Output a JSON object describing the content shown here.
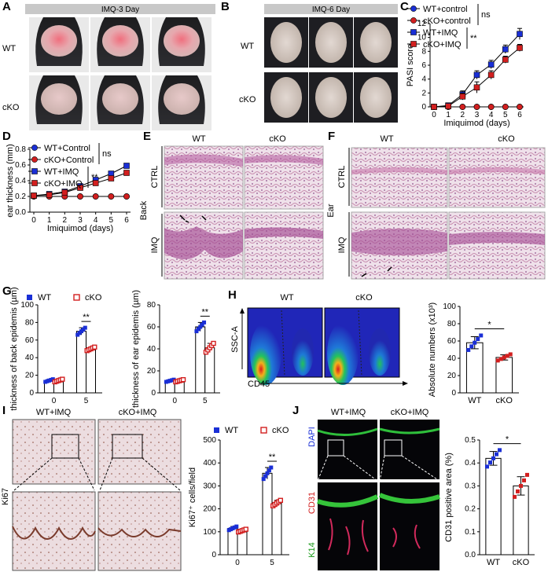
{
  "panels": {
    "A": {
      "letter": "A",
      "title": "IMQ-3 Day",
      "rows": [
        "WT",
        "cKO"
      ]
    },
    "B": {
      "letter": "B",
      "title": "IMQ-6 Day",
      "rows": [
        "WT",
        "cKO"
      ]
    },
    "E": {
      "letter": "E",
      "cols": [
        "WT",
        "cKO"
      ],
      "side": "Back",
      "rows": [
        "CTRL",
        "IMQ"
      ]
    },
    "F": {
      "letter": "F",
      "cols": [
        "WT",
        "cKO"
      ],
      "side": "Ear",
      "rows": [
        "CTRL",
        "IMQ"
      ]
    },
    "H": {
      "letter": "H",
      "cols": [
        "WT",
        "cKO"
      ],
      "yaxis": "SSC-A",
      "xaxis": "CD45"
    },
    "I": {
      "letter": "I",
      "cols": [
        "WT+IMQ",
        "cKO+IMQ"
      ],
      "side": "Ki67"
    },
    "J": {
      "letter": "J",
      "cols": [
        "WT+IMQ",
        "cKO+IMQ"
      ],
      "stains": [
        "DAPI",
        "CD31",
        "K14"
      ]
    }
  },
  "colors": {
    "blue": "#1a2fd6",
    "red": "#d21f1f"
  },
  "chart_data": [
    {
      "id": "C",
      "letter": "C",
      "type": "line",
      "xlabel": "Imiquimod (days)",
      "ylabel": "PASI score",
      "x": [
        0,
        1,
        2,
        3,
        4,
        5,
        6
      ],
      "ylim": [
        0,
        12
      ],
      "yticks": [
        0,
        2,
        4,
        6,
        8,
        10,
        12
      ],
      "series": [
        {
          "name": "WT+control",
          "values": [
            0,
            0,
            0,
            0,
            0,
            0,
            0
          ],
          "marker": "circle",
          "color": "blue"
        },
        {
          "name": "cKO+control",
          "values": [
            0,
            0,
            0,
            0,
            0,
            0,
            0
          ],
          "marker": "circle",
          "color": "red"
        },
        {
          "name": "WT+IMQ",
          "values": [
            0,
            0.2,
            1.8,
            4.6,
            6.1,
            8.3,
            10.5
          ],
          "err": [
            0,
            0.1,
            0.5,
            0.6,
            0.6,
            0.6,
            0.8
          ],
          "marker": "square",
          "color": "blue"
        },
        {
          "name": "cKO+IMQ",
          "values": [
            0,
            0.1,
            1.5,
            2.8,
            4.6,
            6.8,
            8.5
          ],
          "err": [
            0,
            0.1,
            0.5,
            0.8,
            0.6,
            0.5,
            0.5
          ],
          "marker": "square",
          "color": "red"
        }
      ],
      "annotations": [
        "ns",
        "**"
      ]
    },
    {
      "id": "D",
      "letter": "D",
      "type": "line",
      "xlabel": "Imiquimod (days)",
      "ylabel": "ear thickness (mm)",
      "x": [
        0,
        1,
        2,
        3,
        4,
        5,
        6
      ],
      "ylim": [
        0,
        0.8
      ],
      "yticks": [
        "0.0",
        "0.2",
        "0.4",
        "0.6",
        "0.8"
      ],
      "series": [
        {
          "name": "WT+Control",
          "values": [
            0.2,
            0.2,
            0.2,
            0.2,
            0.2,
            0.2,
            0.2
          ],
          "marker": "circle",
          "color": "blue"
        },
        {
          "name": "cKO+Control",
          "values": [
            0.2,
            0.2,
            0.2,
            0.2,
            0.2,
            0.2,
            0.2
          ],
          "marker": "circle",
          "color": "red"
        },
        {
          "name": "WT+IMQ",
          "values": [
            0.21,
            0.23,
            0.26,
            0.33,
            0.41,
            0.49,
            0.59
          ],
          "err": [
            0.01,
            0.01,
            0.01,
            0.02,
            0.02,
            0.02,
            0.03
          ],
          "marker": "square",
          "color": "blue"
        },
        {
          "name": "cKO+IMQ",
          "values": [
            0.21,
            0.22,
            0.25,
            0.31,
            0.37,
            0.43,
            0.5
          ],
          "err": [
            0.01,
            0.01,
            0.01,
            0.02,
            0.02,
            0.02,
            0.02
          ],
          "marker": "square",
          "color": "red"
        }
      ],
      "annotations": [
        "ns",
        "**"
      ]
    },
    {
      "id": "G1",
      "letter": "G",
      "type": "bar",
      "ylabel": "thickness of back epidemis (µm)",
      "categories": [
        "0",
        "5"
      ],
      "ylim": [
        0,
        100
      ],
      "yticks": [
        0,
        20,
        40,
        60,
        80,
        100
      ],
      "legend": [
        "WT",
        "cKO"
      ],
      "series": [
        {
          "name": "WT",
          "values": [
            14,
            70
          ],
          "err": [
            1.5,
            4
          ],
          "color": "blue"
        },
        {
          "name": "cKO",
          "values": [
            14,
            50
          ],
          "err": [
            1.5,
            2
          ],
          "color": "red"
        }
      ],
      "annotations": [
        "**"
      ]
    },
    {
      "id": "G2",
      "type": "bar",
      "ylabel": "thickness of ear epidemis (µm)",
      "categories": [
        "0",
        "5"
      ],
      "ylim": [
        0,
        80
      ],
      "yticks": [
        0,
        20,
        40,
        60,
        80
      ],
      "series": [
        {
          "name": "WT",
          "values": [
            11,
            60
          ],
          "err": [
            1,
            4
          ],
          "color": "blue"
        },
        {
          "name": "cKO",
          "values": [
            11,
            41
          ],
          "err": [
            1,
            4
          ],
          "color": "red"
        }
      ],
      "annotations": [
        "**"
      ]
    },
    {
      "id": "H",
      "type": "bar",
      "ylabel": "Absolute numbers (x10³)",
      "categories": [
        "WT",
        "cKO"
      ],
      "ylim": [
        0,
        100
      ],
      "yticks": [
        0,
        20,
        40,
        60,
        80,
        100
      ],
      "values": [
        58,
        41
      ],
      "err": [
        7,
        3
      ],
      "annotations": [
        "*"
      ]
    },
    {
      "id": "I",
      "type": "bar",
      "ylabel": "Ki67⁺ cells/field",
      "categories": [
        "0",
        "5"
      ],
      "ylim": [
        0,
        500
      ],
      "yticks": [
        0,
        100,
        200,
        300,
        400,
        500
      ],
      "legend": [
        "WT",
        "cKO"
      ],
      "series": [
        {
          "name": "WT",
          "values": [
            115,
            355
          ],
          "err": [
            8,
            25
          ],
          "color": "blue"
        },
        {
          "name": "cKO",
          "values": [
            105,
            225
          ],
          "err": [
            6,
            12
          ],
          "color": "red"
        }
      ],
      "annotations": [
        "**"
      ]
    },
    {
      "id": "J",
      "type": "bar",
      "ylabel": "CD31 positive area (%)",
      "categories": [
        "WT",
        "cKO"
      ],
      "ylim": [
        0,
        0.5
      ],
      "yticks": [
        "0.0",
        "0.1",
        "0.2",
        "0.3",
        "0.4",
        "0.5"
      ],
      "values": [
        0.42,
        0.3
      ],
      "err": [
        0.03,
        0.04
      ],
      "annotations": [
        "*"
      ]
    }
  ]
}
